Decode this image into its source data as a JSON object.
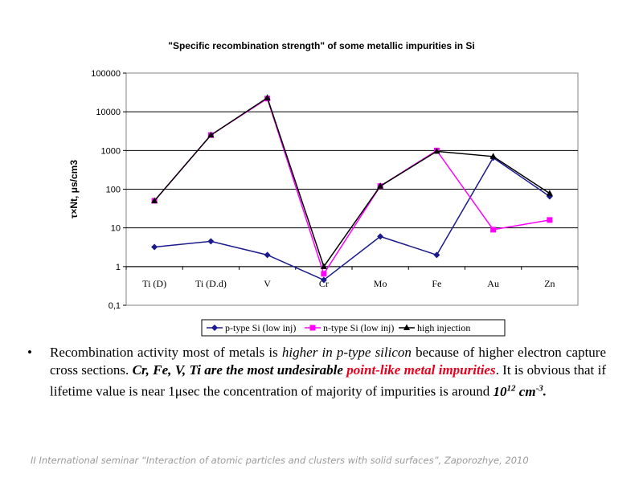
{
  "chart_data": {
    "type": "line",
    "title": "\"Specific recombination strength\" of some metallic impurities in Si",
    "ylabel": "τ×Nt, μs/cm3",
    "xlabel": "",
    "yscale": "log",
    "ylim": [
      0.1,
      100000
    ],
    "yticks": [
      "0,1",
      "1",
      "10",
      "100",
      "1000",
      "10000",
      "100000"
    ],
    "categories": [
      "Ti (D)",
      "Ti (D.d)",
      "V",
      "Cr",
      "Mo",
      "Fe",
      "Au",
      "Zn"
    ],
    "grid": "horizontal major",
    "legend_position": "bottom",
    "series": [
      {
        "name": "p-type Si (low inj)",
        "color": "#1a1a8c",
        "marker": "diamond",
        "values": [
          3.2,
          4.5,
          2.0,
          0.45,
          6.0,
          2.0,
          650,
          65
        ]
      },
      {
        "name": "n-type Si (low inj)",
        "color": "#ff00ff",
        "marker": "square",
        "values": [
          50,
          2500,
          22000,
          0.65,
          120,
          1000,
          9,
          16
        ]
      },
      {
        "name": "high injection",
        "color": "#000000",
        "marker": "triangle",
        "values": [
          50,
          2500,
          23000,
          1.0,
          120,
          950,
          700,
          78
        ]
      }
    ]
  },
  "text": {
    "bullet_char": "•",
    "p1": "Recombination activity most of metals is ",
    "p2": "higher in p-type silicon",
    "p3": " because of higher electron capture cross sections. ",
    "p4": "Cr, Fe, V, Ti are the most undesirable ",
    "p5": "point-like metal impurities",
    "p6": ". It is obvious that if lifetime value is near 1μsec the concentration of majority of impurities is around ",
    "p7_base": "10",
    "p7_sup": "12",
    "p7_unit": " cm",
    "p7_unit_sup": "-3",
    "p8": "."
  },
  "footer": "II International seminar “Interaction of atomic particles and clusters with solid surfaces”, Zaporozhye, 2010"
}
